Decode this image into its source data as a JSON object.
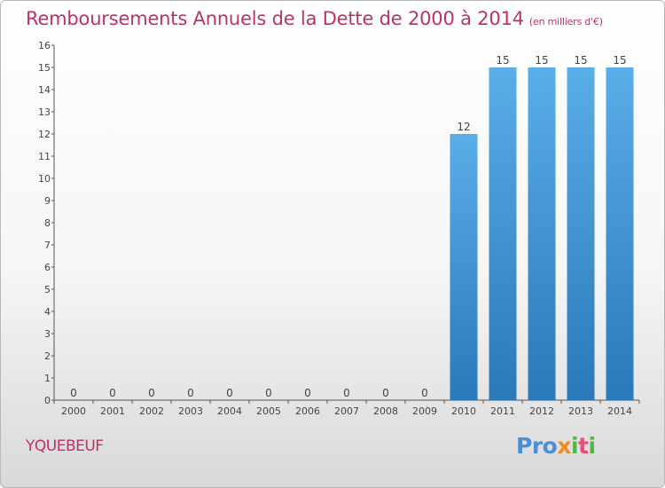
{
  "header": {
    "title": "Remboursements Annuels de la Dette de 2000 à 2014",
    "unit": "(en milliers d'€)"
  },
  "footer": {
    "commune": "YQUEBEUF",
    "logo": {
      "p1": "Pro",
      "p2": "x",
      "p3": "i",
      "p4": "t",
      "p5": "i"
    }
  },
  "colors": {
    "title": "#c0306a",
    "bar_top": "#5aaee8",
    "bar_bottom": "#2a78b8"
  },
  "chart_data": {
    "type": "bar",
    "title": "Remboursements Annuels de la Dette de 2000 à 2014",
    "subtitle": "(en milliers d'€)",
    "categories": [
      "2000",
      "2001",
      "2002",
      "2003",
      "2004",
      "2005",
      "2006",
      "2007",
      "2008",
      "2009",
      "2010",
      "2011",
      "2012",
      "2013",
      "2014"
    ],
    "values": [
      0,
      0,
      0,
      0,
      0,
      0,
      0,
      0,
      0,
      0,
      12,
      15,
      15,
      15,
      15
    ],
    "ylim": [
      0,
      16
    ],
    "yticks": [
      0,
      1,
      2,
      3,
      4,
      5,
      6,
      7,
      8,
      9,
      10,
      11,
      12,
      13,
      14,
      15,
      16
    ],
    "grid": false,
    "legend": "none"
  }
}
